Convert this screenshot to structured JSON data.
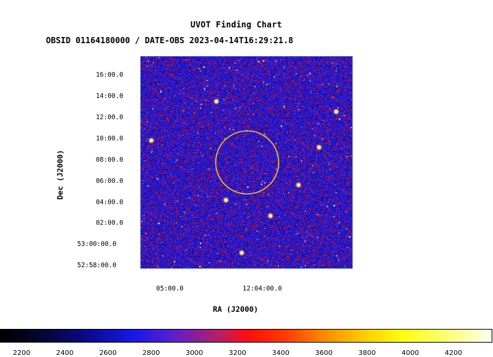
{
  "chart_data": {
    "type": "heatmap",
    "title": "UVOT Finding Chart",
    "subtitle": "OBSID 01164180000 / DATE-OBS 2023-04-14T16:29:21.8",
    "xlabel": "RA (J2000)",
    "ylabel": "Dec (J2000)",
    "x_ticks": [
      "05:00.0",
      "12:04:00.0"
    ],
    "y_ticks": [
      "16:00.0",
      "14:00.0",
      "12:00.0",
      "10:00.0",
      "08:00.0",
      "06:00.0",
      "04:00.0",
      "02:00.0",
      "53:00:00.0",
      "52:58:00.0"
    ],
    "colorbar": {
      "ticks": [
        2200,
        2400,
        2600,
        2800,
        3000,
        3200,
        3400,
        3600,
        3800,
        4000,
        4200
      ],
      "range": [
        2100,
        4380
      ],
      "colors": [
        "#000000",
        "#0a0a90",
        "#1717e8",
        "#b01f70",
        "#ff0a10",
        "#ff8a00",
        "#ffff10",
        "#ffffee"
      ]
    },
    "circle_color": "#f0c020",
    "border_color": "#3344cc"
  }
}
